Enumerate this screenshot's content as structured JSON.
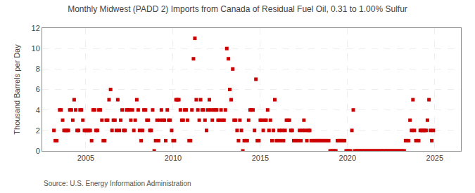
{
  "chart_data": {
    "type": "scatter",
    "title": "Monthly Midwest (PADD 2) Imports from Canada of Residual Fuel Oil, 0.31 to 1.00% Sulfur",
    "y_label": "Thousand Barrels per Day",
    "annotations": [
      "Source: U.S. Energy Information Administration"
    ],
    "color": "#cc0000",
    "marker": "square",
    "grid": true,
    "xlim": [
      2002.5,
      2026.5
    ],
    "xticks": [
      2005,
      2010,
      2015,
      2020,
      2025
    ],
    "ylim": [
      0,
      12
    ],
    "yticks": [
      0,
      2,
      4,
      6,
      8,
      10,
      12
    ],
    "x": [
      2003.17,
      2003.25,
      2003.33,
      2003.5,
      2003.58,
      2003.67,
      2003.75,
      2003.83,
      2003.92,
      2004.0,
      2004.08,
      2004.17,
      2004.25,
      2004.33,
      2004.42,
      2004.5,
      2004.58,
      2004.67,
      2004.75,
      2004.83,
      2004.92,
      2005.0,
      2005.08,
      2005.17,
      2005.25,
      2005.33,
      2005.42,
      2005.5,
      2005.58,
      2005.67,
      2005.75,
      2005.83,
      2005.92,
      2006.0,
      2006.08,
      2006.17,
      2006.25,
      2006.33,
      2006.42,
      2006.5,
      2006.58,
      2006.67,
      2006.75,
      2006.83,
      2006.92,
      2007.0,
      2007.08,
      2007.17,
      2007.25,
      2007.33,
      2007.42,
      2007.5,
      2007.58,
      2007.67,
      2007.75,
      2007.83,
      2007.92,
      2008.0,
      2008.08,
      2008.17,
      2008.25,
      2008.33,
      2008.42,
      2008.5,
      2008.58,
      2008.67,
      2008.75,
      2008.83,
      2008.92,
      2009.0,
      2009.08,
      2009.17,
      2009.25,
      2009.33,
      2009.42,
      2009.5,
      2009.58,
      2009.67,
      2009.75,
      2009.83,
      2009.92,
      2010.0,
      2010.08,
      2010.17,
      2010.25,
      2010.33,
      2010.42,
      2010.5,
      2010.58,
      2010.67,
      2010.75,
      2010.83,
      2010.92,
      2011.0,
      2011.08,
      2011.17,
      2011.25,
      2011.33,
      2011.42,
      2011.5,
      2011.58,
      2011.67,
      2011.75,
      2011.83,
      2011.92,
      2012.0,
      2012.08,
      2012.17,
      2012.25,
      2012.33,
      2012.42,
      2012.5,
      2012.58,
      2012.67,
      2012.75,
      2012.83,
      2012.92,
      2013.0,
      2013.08,
      2013.17,
      2013.25,
      2013.33,
      2013.42,
      2013.5,
      2013.58,
      2013.67,
      2013.75,
      2013.83,
      2013.92,
      2014.0,
      2014.08,
      2014.17,
      2014.25,
      2014.33,
      2014.42,
      2014.5,
      2014.58,
      2014.67,
      2014.75,
      2014.83,
      2014.92,
      2015.0,
      2015.08,
      2015.17,
      2015.25,
      2015.33,
      2015.42,
      2015.5,
      2015.58,
      2015.67,
      2015.75,
      2015.83,
      2015.92,
      2016.0,
      2016.08,
      2016.17,
      2016.25,
      2016.33,
      2016.42,
      2016.5,
      2016.58,
      2016.67,
      2016.75,
      2016.83,
      2016.92,
      2017.0,
      2017.08,
      2017.17,
      2017.25,
      2017.33,
      2017.42,
      2017.5,
      2017.58,
      2017.67,
      2017.75,
      2017.83,
      2017.92,
      2018.0,
      2018.08,
      2018.17,
      2018.25,
      2018.33,
      2018.42,
      2018.5,
      2018.58,
      2018.67,
      2018.75,
      2018.83,
      2018.92,
      2019.0,
      2019.08,
      2019.17,
      2019.25,
      2019.33,
      2019.42,
      2019.5,
      2019.58,
      2019.67,
      2019.75,
      2019.83,
      2019.92,
      2020.0,
      2020.08,
      2020.17,
      2020.25,
      2020.33,
      2020.42,
      2020.5,
      2020.58,
      2020.67,
      2020.75,
      2020.83,
      2020.92,
      2021.0,
      2021.08,
      2021.17,
      2021.25,
      2021.33,
      2021.42,
      2021.5,
      2021.58,
      2021.67,
      2021.75,
      2021.83,
      2021.92,
      2022.0,
      2022.08,
      2022.17,
      2022.25,
      2022.33,
      2022.42,
      2022.5,
      2022.58,
      2022.67,
      2022.75,
      2022.83,
      2022.92,
      2023.0,
      2023.08,
      2023.17,
      2023.25,
      2023.33,
      2023.42,
      2023.5,
      2023.58,
      2023.67,
      2023.75,
      2023.83,
      2023.92,
      2024.0,
      2024.08,
      2024.17,
      2024.25,
      2024.33,
      2024.42,
      2024.5,
      2024.58,
      2024.67,
      2024.75,
      2024.83,
      2024.92
    ],
    "values": [
      2,
      1,
      1,
      4,
      4,
      3,
      2,
      2,
      2,
      2,
      4,
      4,
      3,
      5,
      4,
      2,
      2,
      4,
      4,
      3,
      2,
      2,
      2,
      2,
      2,
      1,
      4,
      4,
      2,
      2,
      4,
      4,
      3,
      1,
      1,
      3,
      3,
      5,
      6,
      2,
      3,
      3,
      2,
      5,
      2,
      3,
      4,
      2,
      2,
      4,
      4,
      4,
      3,
      4,
      2,
      3,
      5,
      4,
      2,
      1,
      2,
      4,
      4,
      3,
      3,
      2,
      2,
      4,
      0,
      1,
      3,
      1,
      3,
      4,
      3,
      3,
      1,
      4,
      3,
      3,
      2,
      1,
      1,
      5,
      5,
      5,
      4,
      3,
      3,
      4,
      4,
      3,
      1,
      1,
      4,
      9,
      11,
      5,
      4,
      3,
      5,
      4,
      4,
      3,
      2,
      4,
      5,
      4,
      3,
      4,
      4,
      4,
      3,
      3,
      4,
      3,
      3,
      4,
      10,
      9,
      6,
      5,
      8,
      3,
      3,
      2,
      1,
      3,
      2,
      0,
      1,
      1,
      1,
      3,
      4,
      4,
      4,
      2,
      7,
      1,
      1,
      3,
      3,
      2,
      3,
      3,
      4,
      2,
      3,
      1,
      2,
      5,
      1,
      1,
      2,
      1,
      2,
      1,
      2,
      3,
      3,
      3,
      2,
      2,
      1,
      1,
      1,
      1,
      2,
      1,
      2,
      3,
      2,
      1,
      2,
      2,
      1,
      1,
      1,
      1,
      1,
      1,
      1,
      1,
      1,
      1,
      1,
      1,
      1,
      0,
      0,
      0,
      0,
      0,
      1,
      1,
      1,
      1,
      1,
      1,
      0,
      0,
      0,
      0,
      2,
      4,
      0,
      0,
      0,
      0,
      0,
      0,
      0,
      0,
      0,
      0,
      0,
      0,
      0,
      0,
      0,
      0,
      0,
      0,
      0,
      0,
      0,
      0,
      0,
      0,
      0,
      0,
      0,
      0,
      0,
      0,
      0,
      0,
      0,
      0,
      0,
      1,
      1,
      1,
      3,
      2,
      5,
      2,
      1,
      1,
      1,
      2,
      2,
      2,
      2,
      2,
      3,
      5,
      2,
      1,
      2
    ]
  }
}
